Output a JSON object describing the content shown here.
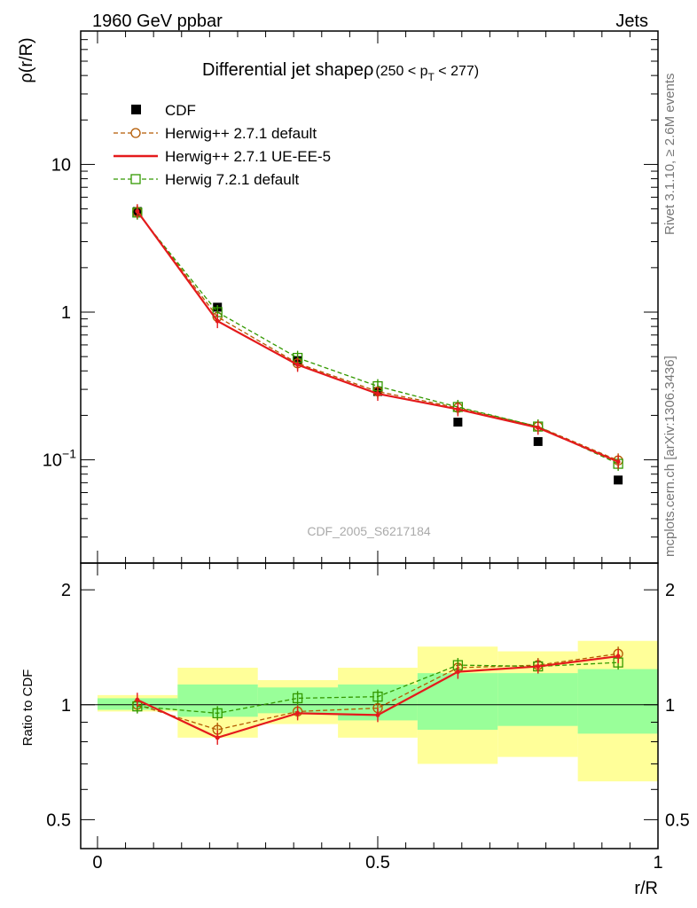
{
  "header": {
    "left": "1960 GeV ppbar",
    "right": "Jets",
    "title": "Differential jet shape",
    "title_rho": "ρ",
    "title_range_pre": "(250 < p",
    "title_range_sub": "T",
    "title_range_post": " < 277)",
    "side_top": "Rivet 3.1.10, ≥ 2.6M events",
    "side_bottom": "mcplots.cern.ch [arXiv:1306.3436]",
    "watermark": "CDF_2005_S6217184"
  },
  "chart_data": [
    {
      "type": "line",
      "panel": "main",
      "ylabel": "ρ(r/R)",
      "xlabel": "r/R",
      "xlim": [
        -0.03,
        1.0
      ],
      "ylim": [
        0.02,
        80
      ],
      "yscale": "log",
      "yticks": [
        {
          "value": 10,
          "label": "10"
        },
        {
          "value": 1,
          "label": "1"
        },
        {
          "value": 0.1,
          "label": "10",
          "sup": "−1"
        }
      ],
      "x": [
        0.071,
        0.214,
        0.357,
        0.5,
        0.643,
        0.786,
        0.929
      ],
      "legend_position": "top-left",
      "series": [
        {
          "name": "CDF",
          "style": "data",
          "color": "#000000",
          "values": [
            4.8,
            1.08,
            0.47,
            0.29,
            0.18,
            0.133,
            0.073
          ]
        },
        {
          "name": "Herwig++ 2.7.1 default",
          "style": "circle-dash",
          "color": "#b35900",
          "values": [
            4.78,
            0.93,
            0.45,
            0.29,
            0.225,
            0.168,
            0.099
          ]
        },
        {
          "name": "Herwig++ 2.7.1 UE-EE-5",
          "style": "solid",
          "color": "#e41a1c",
          "values": [
            4.82,
            0.87,
            0.44,
            0.28,
            0.22,
            0.165,
            0.097
          ]
        },
        {
          "name": "Herwig 7.2.1 default",
          "style": "square-dash",
          "color": "#339900",
          "values": [
            4.72,
            1.0,
            0.49,
            0.315,
            0.228,
            0.168,
            0.094
          ]
        }
      ]
    },
    {
      "type": "line",
      "panel": "ratio",
      "ylabel": "Ratio to CDF",
      "xlabel": "r/R",
      "xlim": [
        -0.03,
        1.0
      ],
      "ylim": [
        0.42,
        2.35
      ],
      "yscale": "log",
      "yticks": [
        {
          "value": 2,
          "label": "2"
        },
        {
          "value": 1,
          "label": "1"
        },
        {
          "value": 0.5,
          "label": "0.5"
        }
      ],
      "xticks": [
        {
          "value": 0,
          "label": "0"
        },
        {
          "value": 0.5,
          "label": "0.5"
        },
        {
          "value": 1,
          "label": "1"
        }
      ],
      "bin_edges": [
        0.0,
        0.143,
        0.286,
        0.429,
        0.571,
        0.714,
        0.857,
        1.0
      ],
      "band_yellow": [
        [
          0.96,
          1.06
        ],
        [
          0.82,
          1.25
        ],
        [
          0.89,
          1.16
        ],
        [
          0.82,
          1.25
        ],
        [
          0.7,
          1.42
        ],
        [
          0.73,
          1.38
        ],
        [
          0.63,
          1.47
        ]
      ],
      "band_green": [
        [
          0.97,
          1.04
        ],
        [
          0.93,
          1.13
        ],
        [
          0.95,
          1.11
        ],
        [
          0.91,
          1.13
        ],
        [
          0.86,
          1.21
        ],
        [
          0.88,
          1.21
        ],
        [
          0.84,
          1.24
        ]
      ],
      "x": [
        0.071,
        0.214,
        0.357,
        0.5,
        0.643,
        0.786,
        0.929
      ],
      "series": [
        {
          "name": "Herwig++ 2.7.1 default",
          "style": "circle-dash",
          "color": "#b35900",
          "values": [
            1.0,
            0.86,
            0.96,
            0.98,
            1.25,
            1.27,
            1.36
          ]
        },
        {
          "name": "Herwig++ 2.7.1 UE-EE-5",
          "style": "solid",
          "color": "#e41a1c",
          "values": [
            1.03,
            0.82,
            0.95,
            0.94,
            1.22,
            1.26,
            1.34
          ]
        },
        {
          "name": "Herwig 7.2.1 default",
          "style": "square-dash",
          "color": "#339900",
          "values": [
            0.99,
            0.95,
            1.04,
            1.05,
            1.27,
            1.26,
            1.29
          ]
        }
      ]
    }
  ]
}
